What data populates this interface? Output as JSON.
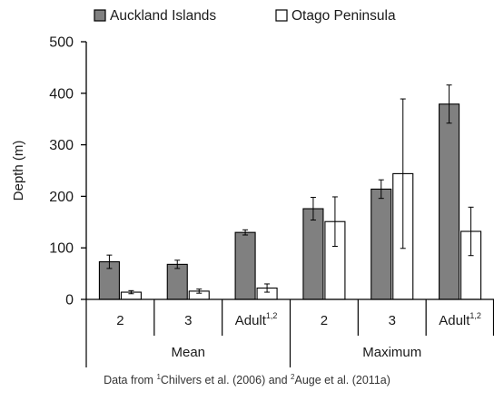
{
  "chart_data": {
    "type": "bar",
    "title": "",
    "ylabel": "Depth (m)",
    "ylim": [
      0,
      500
    ],
    "yticks": [
      "0",
      "100",
      "200",
      "300",
      "400",
      "500"
    ],
    "legend_position": "top",
    "categories": [
      "2",
      "3",
      "Adult",
      "2",
      "3",
      "Adult"
    ],
    "category_superscripts": [
      "",
      "",
      "1,2",
      "",
      "",
      "1,2"
    ],
    "groups": [
      {
        "label": "Mean",
        "span": [
          0,
          2
        ]
      },
      {
        "label": "Maximum",
        "span": [
          3,
          5
        ]
      }
    ],
    "series": [
      {
        "name": "Auckland Islands",
        "color": "#808080",
        "values": [
          73,
          68,
          130,
          176,
          214,
          379
        ],
        "error": [
          13,
          8,
          5,
          22,
          18,
          37
        ]
      },
      {
        "name": "Otago Peninsula",
        "color": "#ffffff",
        "values": [
          14,
          16,
          22,
          151,
          244,
          132
        ],
        "error": [
          3,
          4,
          8,
          48,
          145,
          47
        ]
      }
    ]
  },
  "source_note": {
    "prefix": "Data from ",
    "ref1_sup": "1",
    "ref1": "Chilvers et al. (2006) and ",
    "ref2_sup": "2",
    "ref2": "Auge et al. (2011a)"
  }
}
